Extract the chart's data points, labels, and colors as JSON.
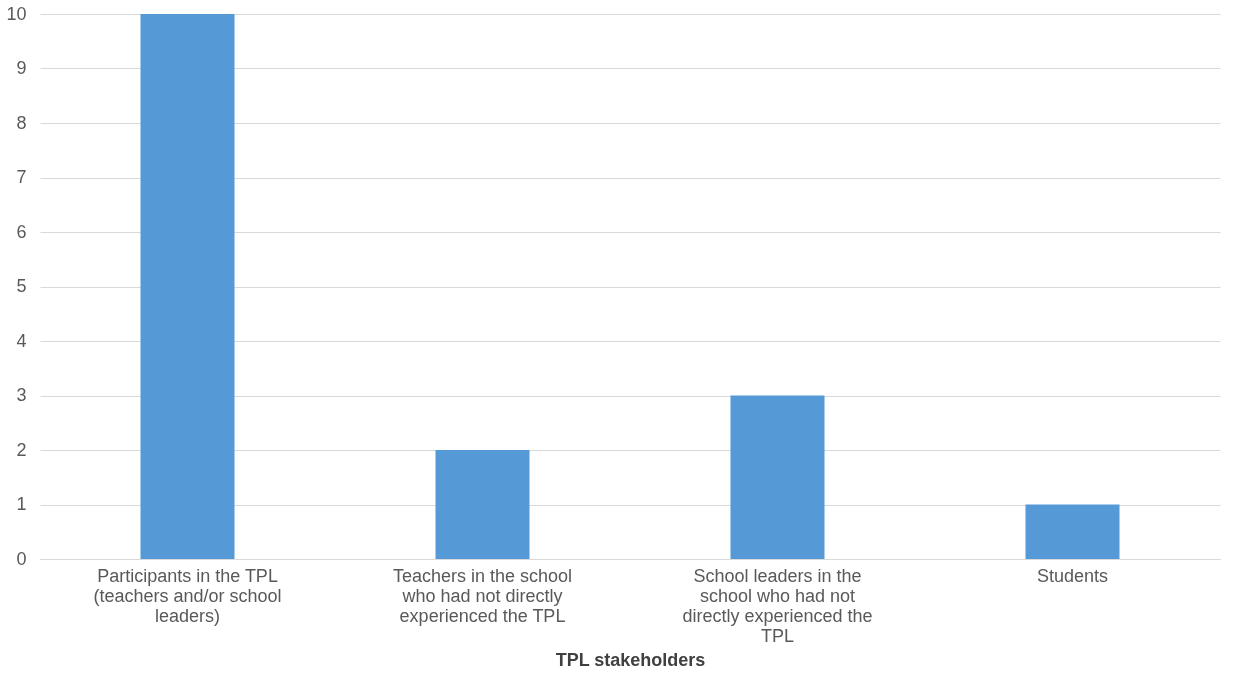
{
  "chart_data": {
    "type": "bar",
    "xlabel": "TPL stakeholders",
    "categories": [
      "Participants in the TPL (teachers and/or school leaders)",
      "Teachers in the school who had not directly experienced the TPL",
      "School leaders in the school who had not directly experienced the TPL",
      "Students"
    ],
    "values": [
      10,
      2,
      3,
      1
    ],
    "color": "#559ad6",
    "ylim": [
      0,
      10
    ],
    "yticks": [
      0,
      1,
      2,
      3,
      4,
      5,
      6,
      7,
      8,
      9,
      10
    ],
    "grid": "y"
  }
}
